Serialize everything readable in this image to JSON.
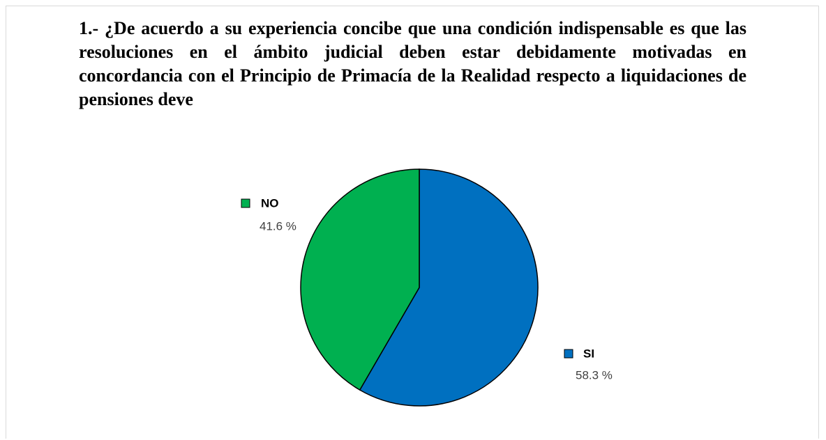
{
  "chart_data": {
    "type": "pie",
    "title": "1.- ¿De acuerdo a su experiencia concibe que una condición indispensable es que las resoluciones en el ámbito judicial deben estar debidamente motivadas en concordancia con el Principio de Primacía de la Realidad respecto a liquidaciones de pensiones deve",
    "categories": [
      "SI",
      "NO"
    ],
    "values": [
      58.3,
      41.6
    ],
    "value_labels": [
      "58.3 %",
      "41.6 %"
    ],
    "colors": [
      "#0070c0",
      "#00b050"
    ]
  }
}
